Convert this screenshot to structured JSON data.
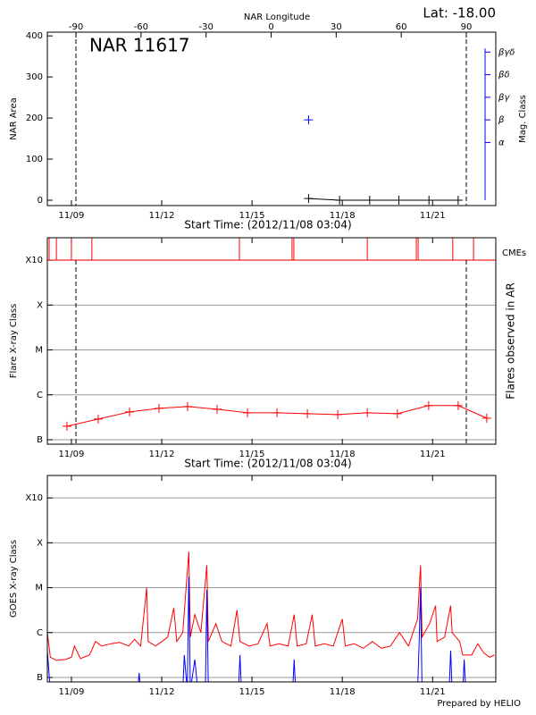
{
  "chart_data": [
    {
      "type": "line",
      "title": "NAR 11617",
      "subtitle": "Lat: -18.00",
      "x2label": "NAR Longitude",
      "xlabel": "Start Time: (2012/11/08 03:04)",
      "ylabel": "NAR Area",
      "y2label": "Mag. Class",
      "y2color": "#0000ff",
      "xlim": [
        8.2,
        23.1
      ],
      "xticks": [
        {
          "value": 9,
          "label": "11/09"
        },
        {
          "value": 12,
          "label": "11/12"
        },
        {
          "value": 15,
          "label": "11/15"
        },
        {
          "value": 18,
          "label": "11/18"
        },
        {
          "value": 21,
          "label": "11/21"
        }
      ],
      "x2lim": [
        -103.2,
        103.6
      ],
      "x2ticks": [
        -90,
        -60,
        -30,
        0,
        30,
        60,
        90
      ],
      "ylim": [
        -13,
        409
      ],
      "yticks": [
        0,
        100,
        200,
        300,
        400
      ],
      "y2lim": [
        -1.79,
        5.88
      ],
      "y2ticks": [
        {
          "value": 1,
          "label": "α"
        },
        {
          "value": 2,
          "label": "β"
        },
        {
          "value": 3,
          "label": "βγ"
        },
        {
          "value": 4,
          "label": "βδ"
        },
        {
          "value": 5,
          "label": "βγδ"
        }
      ],
      "dashed_x": [
        9.15,
        22.12
      ],
      "series": [
        {
          "color": "#000000",
          "marker": "plus",
          "x": [
            16.88,
            17.91,
            18.91,
            19.88,
            20.88,
            21.85
          ],
          "values": [
            4,
            0,
            0,
            0,
            0,
            0
          ]
        },
        {
          "color": "#0000ff",
          "marker": "plus",
          "axis": "y2",
          "x": [
            16.88
          ],
          "values": [
            2
          ]
        }
      ]
    },
    {
      "type": "line",
      "xlabel": "Start Time: (2012/11/08 03:04)",
      "ylabel": "Flare X-ray Class",
      "y2label": "Flares observed in AR",
      "xlim": [
        8.2,
        23.1
      ],
      "xticks": [
        {
          "value": 9,
          "label": "11/09"
        },
        {
          "value": 12,
          "label": "11/12"
        },
        {
          "value": 15,
          "label": "11/15"
        },
        {
          "value": 18,
          "label": "11/18"
        },
        {
          "value": 21,
          "label": "11/21"
        }
      ],
      "ylim": [
        -7.1,
        -2.5
      ],
      "yticks": [
        {
          "value": -7,
          "label": "B"
        },
        {
          "value": -6,
          "label": "C"
        },
        {
          "value": -5,
          "label": "M"
        },
        {
          "value": -4,
          "label": "X"
        },
        {
          "value": -3,
          "label": "X10"
        }
      ],
      "grid": true,
      "dashed_x": [
        9.15,
        22.12
      ],
      "event_label": "CMEs",
      "event_color": "#ff0000",
      "events_x": [
        8.26,
        8.5,
        9.0,
        9.68,
        14.58,
        16.33,
        16.39,
        18.83,
        20.46,
        20.52,
        21.67,
        22.36
      ],
      "series": [
        {
          "color": "#ff0000",
          "marker": "plus",
          "x": [
            8.85,
            9.89,
            10.93,
            11.91,
            12.86,
            13.84,
            14.85,
            15.83,
            16.84,
            17.85,
            18.83,
            19.83,
            20.87,
            21.85,
            22.8
          ],
          "values": [
            -6.7,
            -6.54,
            -6.38,
            -6.3,
            -6.26,
            -6.32,
            -6.4,
            -6.4,
            -6.42,
            -6.44,
            -6.4,
            -6.42,
            -6.24,
            -6.24,
            -6.52
          ]
        }
      ]
    },
    {
      "type": "line",
      "ylabel": "GOES X-ray Class",
      "footer": "Prepared by HELIO",
      "xlim": [
        8.2,
        23.1
      ],
      "xticks": [
        {
          "value": 9,
          "label": "11/09"
        },
        {
          "value": 12,
          "label": "11/12"
        },
        {
          "value": 15,
          "label": "11/15"
        },
        {
          "value": 18,
          "label": "11/18"
        },
        {
          "value": 21,
          "label": "11/21"
        }
      ],
      "ylim": [
        -7.1,
        -2.5
      ],
      "yticks": [
        {
          "value": -7,
          "label": "B"
        },
        {
          "value": -6,
          "label": "C"
        },
        {
          "value": -5,
          "label": "M"
        },
        {
          "value": -4,
          "label": "X"
        },
        {
          "value": -3,
          "label": "X10"
        }
      ],
      "grid": true,
      "series": [
        {
          "color": "#ff0000",
          "x": [
            8.2,
            8.3,
            8.5,
            8.8,
            9.0,
            9.1,
            9.3,
            9.6,
            9.8,
            10.0,
            10.3,
            10.6,
            10.9,
            11.1,
            11.3,
            11.5,
            11.55,
            11.8,
            12.0,
            12.2,
            12.4,
            12.5,
            12.7,
            12.9,
            12.95,
            13.1,
            13.3,
            13.5,
            13.55,
            13.8,
            14.0,
            14.3,
            14.5,
            14.6,
            14.9,
            15.2,
            15.5,
            15.6,
            15.9,
            16.2,
            16.4,
            16.5,
            16.8,
            17.0,
            17.1,
            17.4,
            17.7,
            18.0,
            18.1,
            18.4,
            18.7,
            19.0,
            19.3,
            19.6,
            19.9,
            20.2,
            20.5,
            20.6,
            20.65,
            20.9,
            21.1,
            21.15,
            21.4,
            21.6,
            21.65,
            21.9,
            22.0,
            22.3,
            22.5,
            22.7,
            22.9,
            23.05
          ],
          "values": [
            -6.0,
            -6.55,
            -6.62,
            -6.6,
            -6.55,
            -6.3,
            -6.58,
            -6.5,
            -6.2,
            -6.3,
            -6.25,
            -6.22,
            -6.3,
            -6.15,
            -6.3,
            -5.0,
            -6.2,
            -6.3,
            -6.2,
            -6.1,
            -5.45,
            -6.2,
            -6.0,
            -4.2,
            -6.1,
            -5.6,
            -6.0,
            -4.5,
            -6.2,
            -5.8,
            -6.2,
            -6.3,
            -5.5,
            -6.2,
            -6.3,
            -6.25,
            -5.8,
            -6.3,
            -6.25,
            -6.3,
            -5.6,
            -6.3,
            -6.25,
            -5.6,
            -6.3,
            -6.25,
            -6.3,
            -5.7,
            -6.3,
            -6.25,
            -6.35,
            -6.2,
            -6.35,
            -6.3,
            -6.0,
            -6.3,
            -5.7,
            -4.5,
            -6.1,
            -5.8,
            -5.4,
            -6.2,
            -6.1,
            -5.4,
            -6.0,
            -6.2,
            -6.5,
            -6.5,
            -6.25,
            -6.45,
            -6.55,
            -6.5
          ]
        },
        {
          "color": "#0000ff",
          "x": [
            8.2,
            8.3,
            11.2,
            11.25,
            11.3,
            12.7,
            12.75,
            12.85,
            12.9,
            12.95,
            13.1,
            13.2,
            13.45,
            13.5,
            13.55,
            14.55,
            14.6,
            14.65,
            16.35,
            16.4,
            16.45,
            20.5,
            20.55,
            20.6,
            20.65,
            21.55,
            21.6,
            21.65,
            22.0,
            22.05,
            22.1,
            23.05
          ],
          "values": [
            -6.4,
            -7.3,
            -7.3,
            -6.9,
            -7.3,
            -7.3,
            -6.5,
            -7.3,
            -4.75,
            -7.3,
            -6.6,
            -7.3,
            -7.3,
            -5.05,
            -7.3,
            -7.3,
            -6.5,
            -7.3,
            -7.3,
            -6.6,
            -7.3,
            -7.3,
            -6.3,
            -5.0,
            -7.3,
            -7.3,
            -6.4,
            -7.3,
            -7.3,
            -6.6,
            -7.3,
            -7.3
          ]
        }
      ]
    }
  ]
}
